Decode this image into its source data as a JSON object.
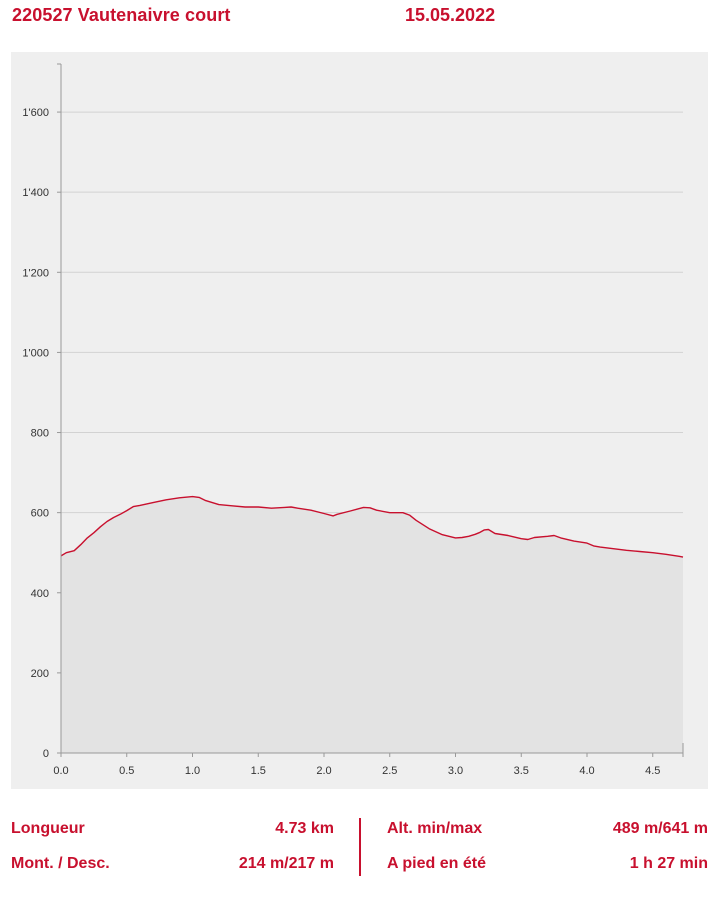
{
  "header": {
    "title": "220527 Vautenaivre court",
    "date": "15.05.2022"
  },
  "stats": {
    "length_label": "Longueur",
    "length_value": "4.73 km",
    "updown_label": "Mont. / Desc.",
    "updown_value": "214 m/217 m",
    "alt_label": "Alt. min/max",
    "alt_value": "489 m/641 m",
    "walk_label": "A pied en été",
    "walk_value": "1 h 27 min"
  },
  "colors": {
    "accent": "#c8102e",
    "plot_bg": "#efefef",
    "fill": "#e3e3e3",
    "grid": "#d2d2d2",
    "axis": "#999999"
  },
  "chart_data": {
    "type": "area",
    "title": "",
    "xlabel": "",
    "ylabel": "",
    "xlim": [
      0,
      4.73
    ],
    "ylim": [
      0,
      1720
    ],
    "grid": true,
    "x_ticks": [
      0,
      0.5,
      1.0,
      1.5,
      2.0,
      2.5,
      3.0,
      3.5,
      4.0,
      4.5
    ],
    "x_tick_labels": [
      "0.0",
      "0.5",
      "1.0",
      "1.5",
      "2.0",
      "2.5",
      "3.0",
      "3.5",
      "4.0",
      "4.5"
    ],
    "y_ticks": [
      0,
      200,
      400,
      600,
      800,
      1000,
      1200,
      1400,
      1600
    ],
    "y_tick_labels": [
      "0",
      "200",
      "400",
      "600",
      "800",
      "1'000",
      "1'200",
      "1'400",
      "1'600"
    ],
    "series": [
      {
        "x": [
          0.0,
          0.04,
          0.1,
          0.15,
          0.2,
          0.25,
          0.3,
          0.35,
          0.4,
          0.45,
          0.5,
          0.55,
          0.6,
          0.7,
          0.8,
          0.9,
          1.0,
          1.05,
          1.1,
          1.2,
          1.3,
          1.4,
          1.5,
          1.6,
          1.7,
          1.75,
          1.8,
          1.9,
          2.0,
          2.07,
          2.1,
          2.2,
          2.3,
          2.35,
          2.4,
          2.5,
          2.6,
          2.65,
          2.7,
          2.8,
          2.9,
          3.0,
          3.05,
          3.1,
          3.15,
          3.18,
          3.22,
          3.25,
          3.3,
          3.4,
          3.5,
          3.55,
          3.6,
          3.7,
          3.75,
          3.8,
          3.9,
          4.0,
          4.05,
          4.1,
          4.2,
          4.3,
          4.4,
          4.5,
          4.6,
          4.7,
          4.73
        ],
        "y": [
          492,
          500,
          505,
          520,
          537,
          550,
          565,
          578,
          588,
          596,
          605,
          615,
          618,
          625,
          632,
          637,
          640,
          638,
          630,
          620,
          617,
          614,
          614,
          611,
          613,
          614,
          611,
          606,
          598,
          592,
          596,
          604,
          613,
          612,
          606,
          600,
          600,
          594,
          581,
          560,
          545,
          537,
          538,
          541,
          546,
          550,
          557,
          558,
          548,
          543,
          535,
          533,
          538,
          541,
          543,
          537,
          529,
          524,
          517,
          514,
          510,
          506,
          503,
          500,
          496,
          491,
          489
        ]
      }
    ]
  }
}
